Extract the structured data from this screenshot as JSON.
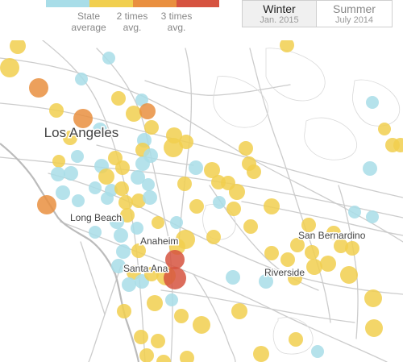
{
  "legend": {
    "labels": [
      {
        "line1": "State",
        "line2": "average"
      },
      {
        "line1": "2 times",
        "line2": "avg."
      },
      {
        "line1": "3 times",
        "line2": "avg."
      }
    ],
    "colors": [
      "#a8dde8",
      "#f1cf4f",
      "#e98f3f",
      "#d65340"
    ]
  },
  "toggle": {
    "winter": {
      "label": "Winter",
      "sub": "Jan. 2015",
      "active": true
    },
    "summer": {
      "label": "Summer",
      "sub": "July 2014",
      "active": false
    }
  },
  "cities": [
    {
      "name": "Los Angeles",
      "emphasis": "major"
    },
    {
      "name": "Long Beach",
      "emphasis": "minor"
    },
    {
      "name": "Anaheim",
      "emphasis": "minor"
    },
    {
      "name": "Santa Ana",
      "emphasis": "minor"
    },
    {
      "name": "San Bernardino",
      "emphasis": "minor"
    },
    {
      "name": "Riverside",
      "emphasis": "minor"
    }
  ],
  "map_style": {
    "background": "#ffffff",
    "road_color": "#cccccc",
    "coast_color": "#bbbbbb",
    "bubble_opacity": 0.85
  }
}
